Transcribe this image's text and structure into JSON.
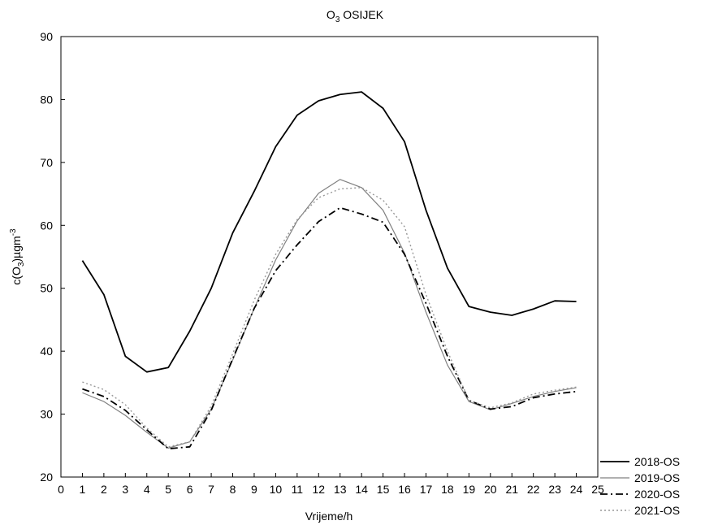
{
  "chart_data": {
    "type": "line",
    "title": {
      "prefix": "O",
      "subscript": "3",
      "rest": " OSIJEK"
    },
    "xlabel": "Vrijeme/h",
    "ylabel": {
      "prefix": "c(O",
      "subscript": "3",
      "mid": ")µgm",
      "superscript": "-3"
    },
    "xlim": [
      0,
      25
    ],
    "ylim": [
      20,
      90
    ],
    "xticks": [
      0,
      1,
      2,
      3,
      4,
      5,
      6,
      7,
      8,
      9,
      10,
      11,
      12,
      13,
      14,
      15,
      16,
      17,
      18,
      19,
      20,
      21,
      22,
      23,
      24,
      25
    ],
    "yticks": [
      20,
      30,
      40,
      50,
      60,
      70,
      80,
      90
    ],
    "grid": false,
    "legend_position": "bottom-right",
    "x": [
      1,
      2,
      3,
      4,
      5,
      6,
      7,
      8,
      9,
      10,
      11,
      12,
      13,
      14,
      15,
      16,
      17,
      18,
      19,
      20,
      21,
      22,
      23,
      24
    ],
    "series": [
      {
        "name": "2018-OS",
        "style": "solid",
        "color": "#000000",
        "width": 1.8,
        "values": [
          54.4,
          49.0,
          39.2,
          36.7,
          37.4,
          43.2,
          50.0,
          58.8,
          65.4,
          72.5,
          77.5,
          79.8,
          80.8,
          81.2,
          78.6,
          73.3,
          62.4,
          53.2,
          47.1,
          46.2,
          45.7,
          46.7,
          48.0,
          47.9
        ]
      },
      {
        "name": "2019-OS",
        "style": "solid",
        "color": "#808080",
        "width": 1.2,
        "values": [
          33.4,
          32.0,
          29.8,
          27.1,
          24.6,
          25.6,
          30.8,
          38.6,
          46.8,
          54.5,
          60.7,
          65.1,
          67.3,
          66.0,
          62.4,
          55.6,
          46.2,
          37.8,
          32.0,
          30.7,
          31.7,
          32.8,
          33.6,
          34.2
        ]
      },
      {
        "name": "2020-OS",
        "style": "dashdot",
        "color": "#000000",
        "width": 1.8,
        "values": [
          34.0,
          32.8,
          30.6,
          27.5,
          24.5,
          24.8,
          30.6,
          38.8,
          46.8,
          52.8,
          56.9,
          60.6,
          62.8,
          61.8,
          60.5,
          55.4,
          47.6,
          39.2,
          32.2,
          30.8,
          31.2,
          32.6,
          33.2,
          33.6
        ]
      },
      {
        "name": "2021-OS",
        "style": "dotted",
        "color": "#999999",
        "width": 1.4,
        "values": [
          35.1,
          33.9,
          31.5,
          27.8,
          24.8,
          25.6,
          31.3,
          39.6,
          48.1,
          55.4,
          60.9,
          64.4,
          65.8,
          66.0,
          64.0,
          59.8,
          49.0,
          40.0,
          32.2,
          31.0,
          31.8,
          33.2,
          33.8,
          34.3
        ]
      }
    ]
  }
}
